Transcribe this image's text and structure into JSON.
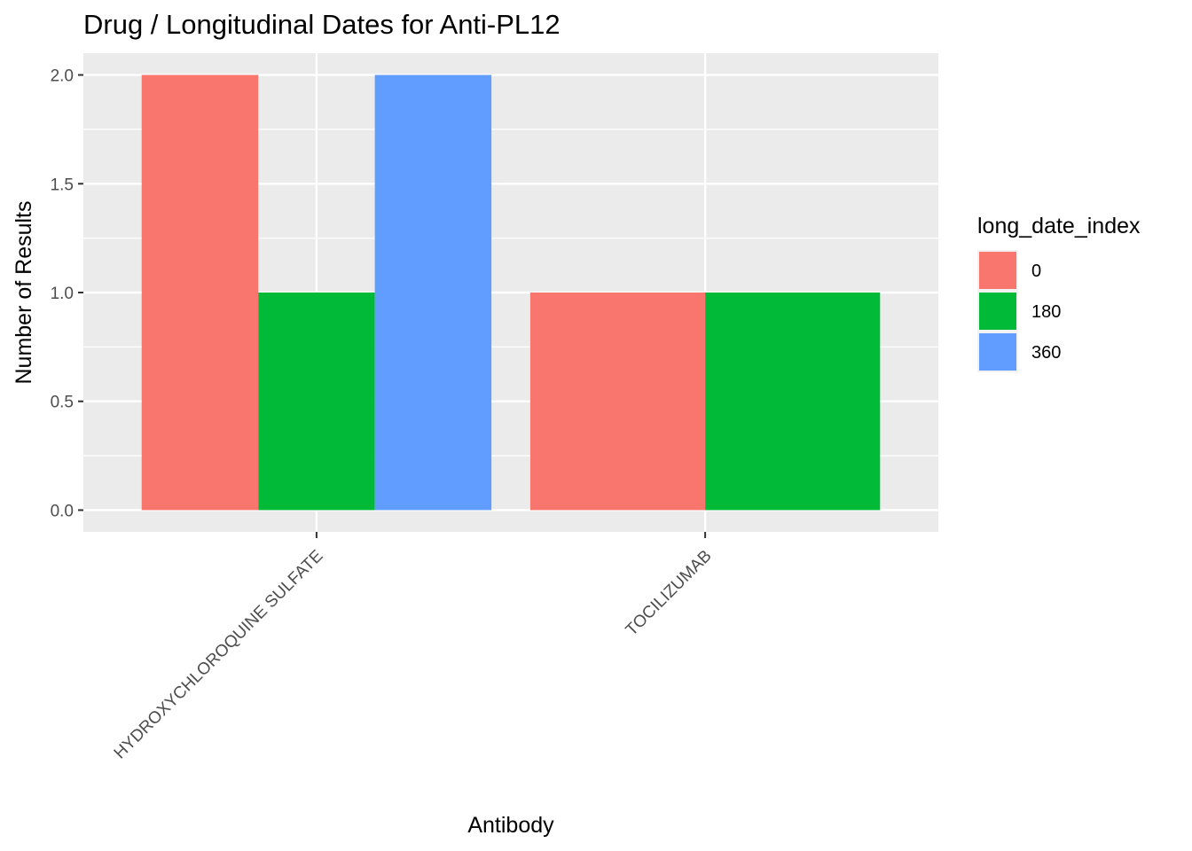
{
  "chart_data": {
    "type": "bar",
    "title": "Drug / Longitudinal Dates for Anti-PL12",
    "xlabel": "Antibody",
    "ylabel": "Number of Results",
    "ylim": [
      -0.1,
      2.1
    ],
    "yticks": [
      "0.0",
      "0.5",
      "1.0",
      "1.5",
      "2.0"
    ],
    "ytick_values": [
      0,
      0.5,
      1.0,
      1.5,
      2.0
    ],
    "categories": [
      "HYDROXYCHLOROQUINE SULFATE",
      "TOCILIZUMAB"
    ],
    "legend_title": "long_date_index",
    "legend_position": "right",
    "grid": true,
    "background": "#ebebeb",
    "series": [
      {
        "name": "0",
        "color": "#f8766d",
        "values": [
          2,
          1
        ]
      },
      {
        "name": "180",
        "color": "#00ba38",
        "values": [
          1,
          1
        ]
      },
      {
        "name": "360",
        "color": "#619cff",
        "values": [
          2,
          null
        ]
      }
    ]
  }
}
